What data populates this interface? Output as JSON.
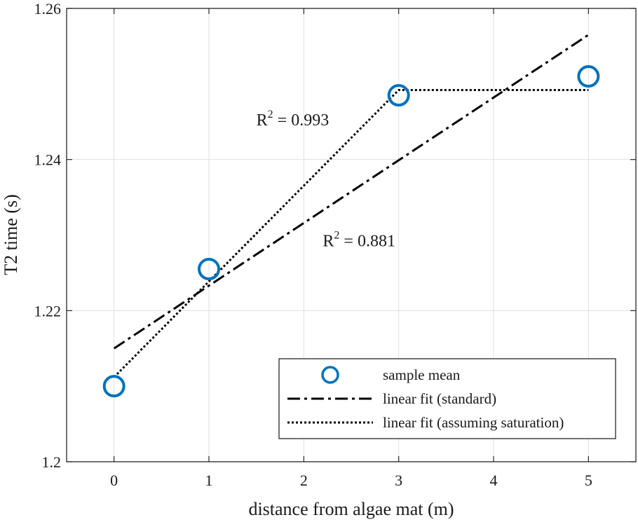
{
  "chart_data": {
    "type": "scatter",
    "xlabel": "distance from algae mat (m)",
    "ylabel": "T2 time (s)",
    "xlim": [
      -0.5,
      5.5
    ],
    "ylim": [
      1.2,
      1.26
    ],
    "xticks": [
      "0",
      "1",
      "2",
      "3",
      "4",
      "5"
    ],
    "yticks": [
      "1.2",
      "1.22",
      "1.24",
      "1.26"
    ],
    "grid": true,
    "legend_position": "bottom-right",
    "series": [
      {
        "name": "sample mean",
        "kind": "markers",
        "color": "#0072BD",
        "points": [
          [
            0,
            1.21
          ],
          [
            1,
            1.2255
          ],
          [
            3,
            1.2485
          ],
          [
            5,
            1.251
          ]
        ]
      },
      {
        "name": "linear fit (standard)",
        "kind": "dashdot-line",
        "color": "#000000",
        "points": [
          [
            0,
            1.215
          ],
          [
            5,
            1.2565
          ]
        ]
      },
      {
        "name": "linear fit (assuming saturation)",
        "kind": "dotted-line",
        "color": "#000000",
        "points": [
          [
            0,
            1.2112
          ],
          [
            3,
            1.2492
          ],
          [
            5,
            1.2492
          ]
        ]
      }
    ],
    "annotations": [
      {
        "base": "R",
        "sup": "2",
        "rest": " = 0.993",
        "x": 1.5,
        "y": 1.2445
      },
      {
        "base": "R",
        "sup": "2",
        "rest": " = 0.881",
        "x": 2.2,
        "y": 1.2285
      }
    ]
  }
}
